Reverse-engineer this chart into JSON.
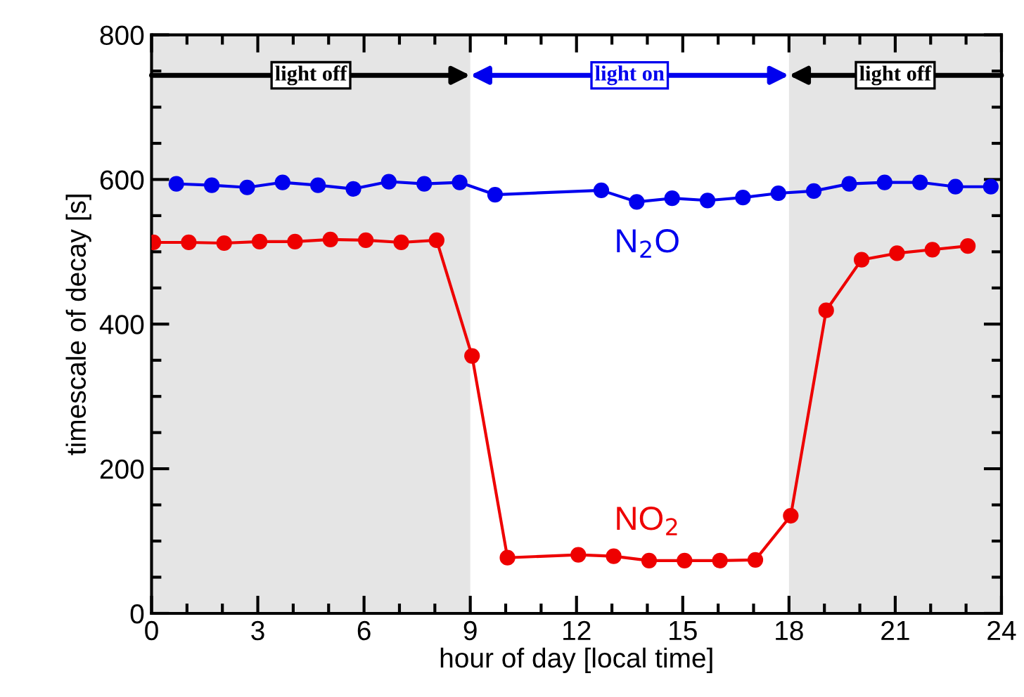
{
  "chart_data": {
    "type": "line",
    "xlabel": "hour of day [local time]",
    "ylabel": "timescale of decay [s]",
    "xlim": [
      0,
      24
    ],
    "xticks": [
      0,
      3,
      6,
      9,
      12,
      15,
      18,
      21,
      24
    ],
    "ylim": [
      0,
      800
    ],
    "yticks": [
      0,
      200,
      400,
      600,
      800
    ],
    "marker": "circle",
    "line_style": "solid",
    "grid": false,
    "series": [
      {
        "name": "N$_{2}$O",
        "color": "#0000ee",
        "x": [
          0.7,
          1.7,
          2.7,
          3.7,
          4.7,
          5.7,
          6.7,
          7.7,
          8.7,
          9.7,
          12.7,
          13.7,
          14.7,
          15.7,
          16.7,
          17.7,
          18.7,
          19.7,
          20.7,
          21.7,
          22.7,
          23.7
        ],
        "values": [
          594,
          592,
          589,
          596,
          592,
          587,
          597,
          594,
          596,
          579,
          585,
          569,
          574,
          571,
          575,
          581,
          584,
          594,
          596,
          596,
          590,
          590
        ]
      },
      {
        "name": "NO$_{2}$",
        "color": "#ee0000",
        "x": [
          0.05,
          1.05,
          2.05,
          3.05,
          4.05,
          5.05,
          6.05,
          7.05,
          8.05,
          9.05,
          10.05,
          12.05,
          13.05,
          14.05,
          15.05,
          16.05,
          17.05,
          18.05,
          19.05,
          20.05,
          21.05,
          22.05,
          23.05
        ],
        "values": [
          513,
          513,
          512,
          514,
          514,
          517,
          516,
          513,
          516,
          356,
          77,
          81,
          79,
          73,
          73,
          73,
          74,
          135,
          419,
          489,
          498,
          503,
          508
        ]
      }
    ],
    "bands": [
      {
        "axis": "x",
        "from": 0,
        "to": 9,
        "color": "#e5e5e5",
        "label": "light off"
      },
      {
        "axis": "x",
        "from": 18,
        "to": 24,
        "color": "#e5e5e5",
        "label": "light off"
      }
    ],
    "annotations": [
      "light on"
    ]
  }
}
